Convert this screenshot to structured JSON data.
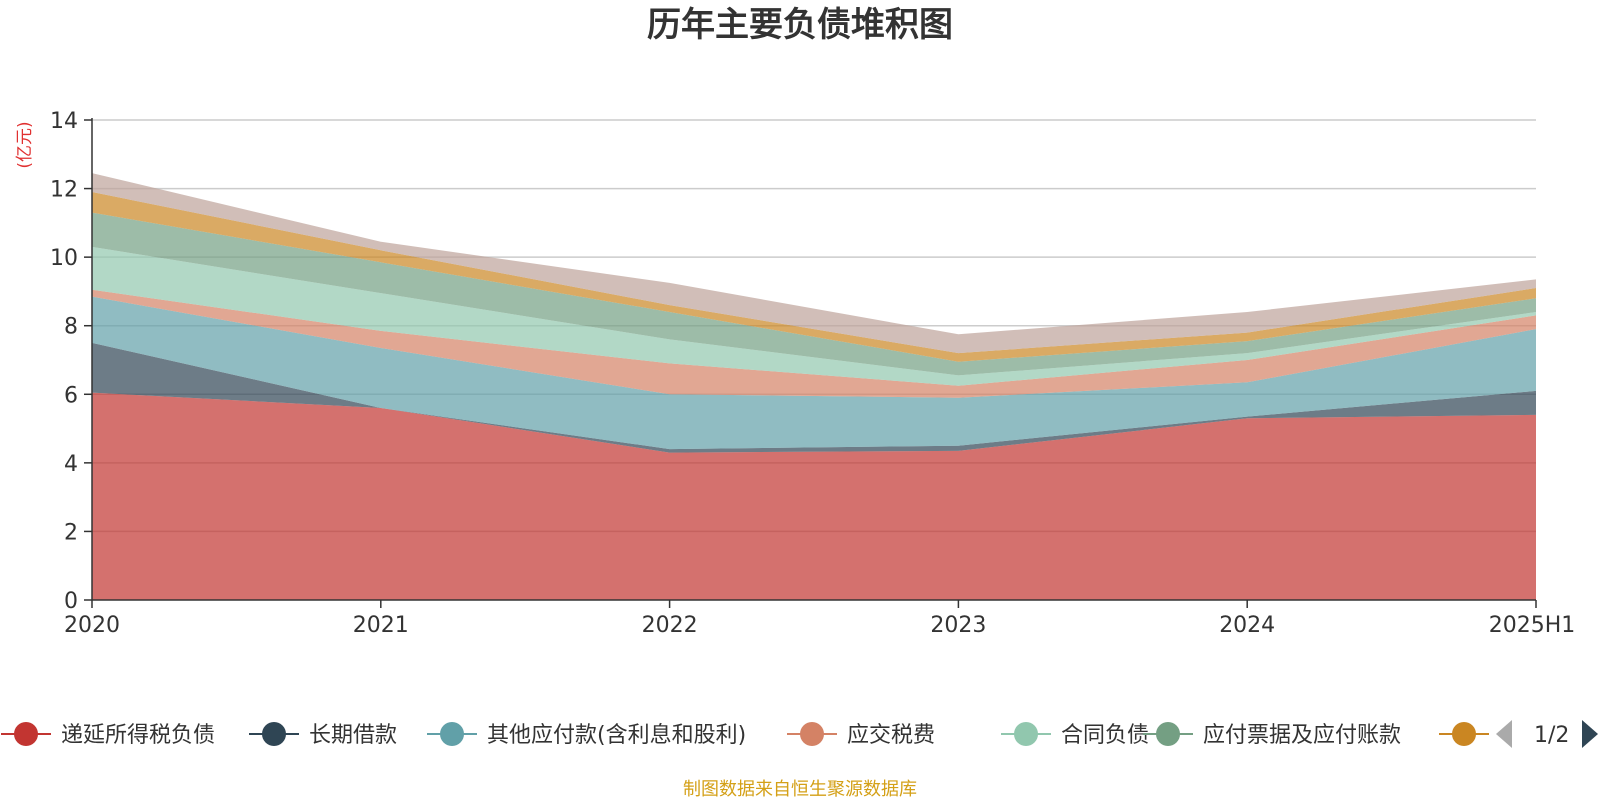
{
  "chart_data": {
    "type": "area",
    "stacked": true,
    "title": "历年主要负债堆积图",
    "unit_label": "(亿元)",
    "categories": [
      "2020",
      "2021",
      "2022",
      "2023",
      "2024",
      "2025H1"
    ],
    "ylim": [
      0,
      14
    ],
    "y_ticks": [
      "0",
      "2",
      "4",
      "6",
      "8",
      "10",
      "12",
      "14"
    ],
    "grid": true,
    "series": [
      {
        "name": "递延所得税负债",
        "color": "#c23531",
        "values": [
          6.05,
          5.6,
          4.3,
          4.35,
          5.3,
          5.4
        ]
      },
      {
        "name": "长期借款",
        "color": "#2f4554",
        "values": [
          1.45,
          0.0,
          0.1,
          0.15,
          0.05,
          0.7
        ]
      },
      {
        "name": "其他应付款(含利息和股利)",
        "color": "#61a0a8",
        "values": [
          1.35,
          1.75,
          1.6,
          1.4,
          1.0,
          1.8
        ]
      },
      {
        "name": "应交税费",
        "color": "#d48265",
        "values": [
          0.2,
          0.5,
          0.9,
          0.35,
          0.65,
          0.4
        ]
      },
      {
        "name": "合同负债",
        "color": "#91c7ae",
        "values": [
          1.25,
          1.1,
          0.7,
          0.3,
          0.2,
          0.1
        ]
      },
      {
        "name": "应付票据及应付账款",
        "color": "#749f83",
        "values": [
          1.0,
          0.9,
          0.8,
          0.4,
          0.35,
          0.4
        ]
      },
      {
        "name": "",
        "color": "#ca8622",
        "values": [
          0.6,
          0.35,
          0.2,
          0.25,
          0.25,
          0.3
        ]
      },
      {
        "name": "",
        "color": "#bda29a",
        "values": [
          0.55,
          0.25,
          0.65,
          0.55,
          0.6,
          0.25
        ]
      }
    ],
    "legend": {
      "position": "bottom",
      "items": [
        "递延所得税负债",
        "长期借款",
        "其他应付款(含利息和股利)",
        "应交税费",
        "合同负债",
        "应付票据及应付账款",
        ""
      ],
      "page_indicator": "1/2"
    }
  },
  "source_note": "制图数据来自恒生聚源数据库"
}
